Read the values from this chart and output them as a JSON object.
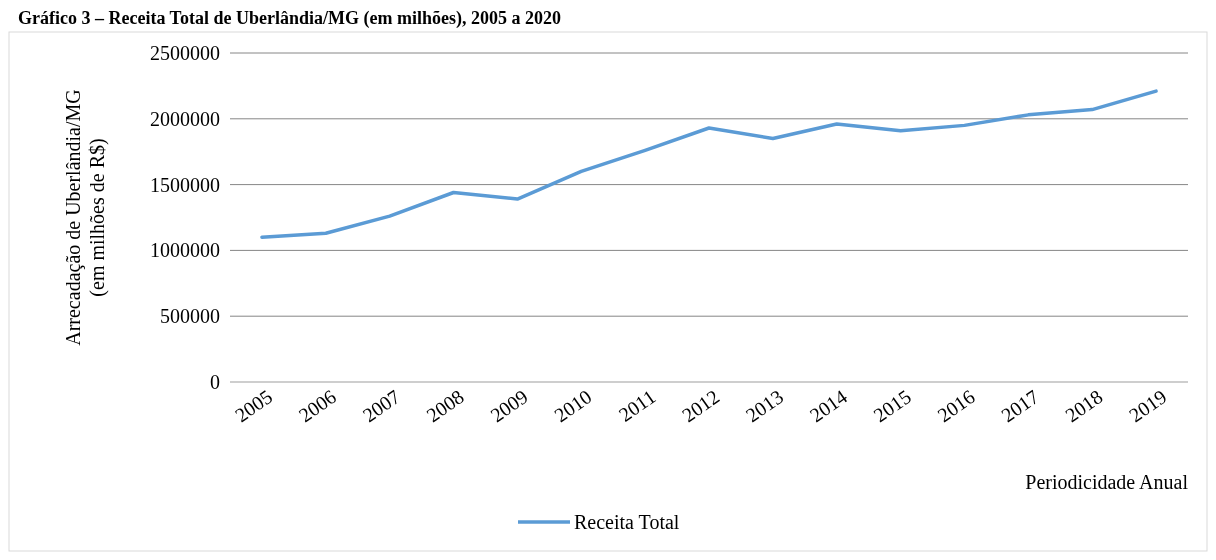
{
  "chart_data": {
    "type": "line",
    "title": "Gráfico 3 – Receita Total de Uberlândia/MG (em milhões), 2005 a 2020",
    "xlabel": "Periodicidade Anual",
    "ylabel": "Arrecadação de Uberlândia/MG\n(em milhões de R$)",
    "categories": [
      "2005",
      "2006",
      "2007",
      "2008",
      "2009",
      "2010",
      "2011",
      "2012",
      "2013",
      "2014",
      "2015",
      "2016",
      "2017",
      "2018",
      "2019"
    ],
    "series": [
      {
        "name": "Receita Total",
        "color": "#5b9bd5",
        "values": [
          1100000,
          1130000,
          1260000,
          1440000,
          1390000,
          1600000,
          1760000,
          1930000,
          1850000,
          1960000,
          1910000,
          1950000,
          2030000,
          2070000,
          2210000
        ]
      }
    ],
    "ylim": [
      0,
      2500000
    ],
    "yticks": [
      0,
      500000,
      1000000,
      1500000,
      2000000,
      2500000
    ],
    "grid": "y",
    "legend": "bottom",
    "marker": "none",
    "line_style": "solid"
  }
}
